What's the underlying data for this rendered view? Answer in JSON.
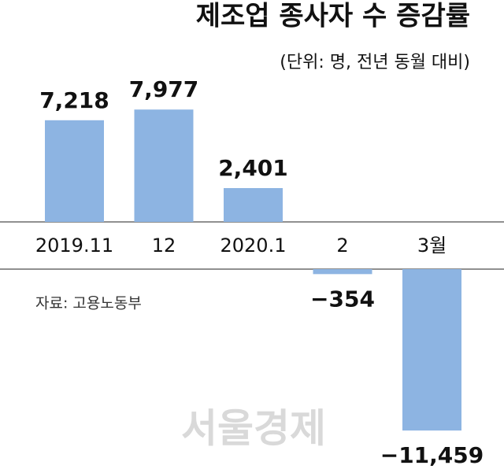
{
  "chart_data": {
    "type": "bar",
    "title": "제조업 종사자 수 증감률",
    "subtitle": "(단위: 명, 전년 동월 대비)",
    "categories": [
      "2019.11",
      "12",
      "2020.1",
      "2",
      "3월"
    ],
    "values": [
      7218,
      7977,
      2401,
      -354,
      -11459
    ],
    "value_labels": [
      "7,218",
      "7,977",
      "2,401",
      "−354",
      "−11,459"
    ],
    "color": "#8db4e2",
    "source": "자료: 고용노동부",
    "watermark": "서울경제"
  }
}
